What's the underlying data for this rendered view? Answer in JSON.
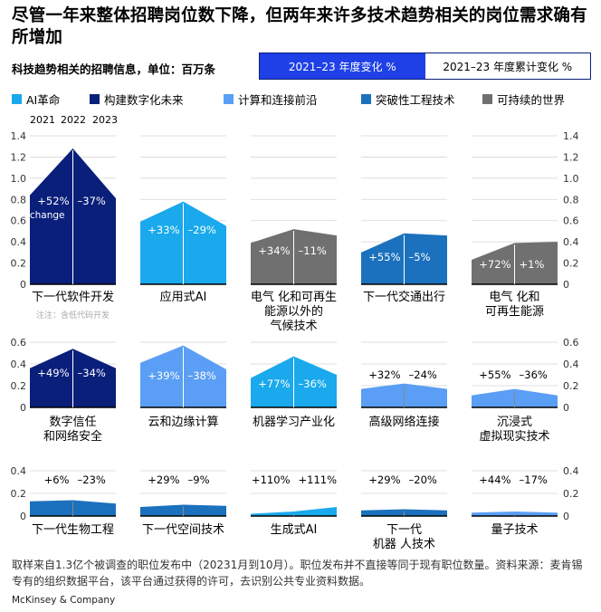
{
  "title": "尽管一年来整体招聘岗位数下降，但两年来许多技术趋势相关的岗位需求确有所增加",
  "subtitle": "科技趋势相关的招聘信息，单位：百万条",
  "tabs": [
    {
      "label": "2021–23 年度变化 %",
      "active": true
    },
    {
      "label": "2021–23 年度累计变化 %",
      "active": false
    }
  ],
  "legend": [
    {
      "label": "AI革命",
      "color": "#19a9ec"
    },
    {
      "label": "构建数字化未来",
      "color": "#0a1f7a"
    },
    {
      "label": "计算和连接前沿",
      "color": "#5a9ef5"
    },
    {
      "label": "突破性工程技术",
      "color": "#1b71bd"
    },
    {
      "label": "可持续的世界",
      "color": "#707070"
    }
  ],
  "years": [
    "2021",
    "2022",
    "2023"
  ],
  "footer": "取样来自1.3亿个被调查的职位发布中（20231月到10月）。职位发布并不直接等同于现有职位数量。资料来源：麦肯锡专有的组织数据平台，该平台通过获得的许可，去识别公共专业资料数据。",
  "brand": "McKinsey & Company",
  "chart_data": {
    "type": "area",
    "x": [
      "2021",
      "2022",
      "2023"
    ],
    "unit": "百万条",
    "rows": [
      {
        "ylim": [
          0,
          1.4
        ],
        "yticks": [
          "0",
          "0.2",
          "0.4",
          "0.6",
          "0.8",
          "1.0",
          "1.2",
          "1.4"
        ]
      },
      {
        "ylim": [
          0,
          0.6
        ],
        "yticks": [
          "0",
          "0.2",
          "0.4",
          "0.6"
        ]
      },
      {
        "ylim": [
          0,
          0.4
        ],
        "yticks": [
          "0",
          "0.2",
          "0.4"
        ]
      }
    ],
    "panels": [
      {
        "name": "下一代软件开发",
        "note": "注注：含低代码开发",
        "category": "构建数字化未来",
        "color": "#0a1f7a",
        "values": [
          0.84,
          1.28,
          0.81
        ],
        "change1": "+52%",
        "change1_sub": "change",
        "change2": "–37%"
      },
      {
        "name": "应用式AI",
        "category": "AI革命",
        "color": "#19a9ec",
        "values": [
          0.59,
          0.78,
          0.55
        ],
        "change1": "+33%",
        "change2": "–29%"
      },
      {
        "name": "电气 化和可再生能源以外的气候技术",
        "lines": [
          "电气 化和可再生",
          "能源以外的",
          "气候技术"
        ],
        "category": "可持续的世界",
        "color": "#707070",
        "values": [
          0.39,
          0.52,
          0.46
        ],
        "change1": "+34%",
        "change2": "–11%"
      },
      {
        "name": "下一代交通出行",
        "category": "突破性工程技术",
        "color": "#1b71bd",
        "values": [
          0.3,
          0.48,
          0.46
        ],
        "change1": "+55%",
        "change2": "–5%"
      },
      {
        "name": "电气 化和可再生能源",
        "lines": [
          "电气 化和",
          "可再生能源"
        ],
        "category": "可持续的世界",
        "color": "#707070",
        "values": [
          0.23,
          0.39,
          0.4
        ],
        "change1": "+72%",
        "change2": "+1%"
      },
      {
        "name": "数字信任和网络安全",
        "lines": [
          "数字信任",
          "和网络安全"
        ],
        "category": "构建数字化未来",
        "color": "#0a1f7a",
        "values": [
          0.36,
          0.54,
          0.36
        ],
        "change1": "+49%",
        "change2": "–34%"
      },
      {
        "name": "云和边缘计算",
        "category": "计算和连接前沿",
        "color": "#5a9ef5",
        "values": [
          0.41,
          0.57,
          0.35
        ],
        "change1": "+39%",
        "change2": "–38%"
      },
      {
        "name": "机器学习产业化",
        "category": "AI革命",
        "color": "#19a9ec",
        "values": [
          0.27,
          0.47,
          0.3
        ],
        "change1": "+77%",
        "change2": "–36%"
      },
      {
        "name": "高级网络连接",
        "category": "计算和连接前沿",
        "color": "#5a9ef5",
        "values": [
          0.17,
          0.22,
          0.17
        ],
        "change1": "+32%",
        "change2": "–24%"
      },
      {
        "name": "沉浸式虚拟现实技术",
        "lines": [
          "沉浸式",
          "虚拟现实技术"
        ],
        "category": "计算和连接前沿",
        "color": "#5a9ef5",
        "values": [
          0.11,
          0.17,
          0.11
        ],
        "change1": "+55%",
        "change2": "–36%"
      },
      {
        "name": "下一代生物工程",
        "category": "突破性工程技术",
        "color": "#1b71bd",
        "values": [
          0.13,
          0.14,
          0.11
        ],
        "change1": "+6%",
        "change2": "–23%"
      },
      {
        "name": "下一代空间技术",
        "category": "突破性工程技术",
        "color": "#1b71bd",
        "values": [
          0.08,
          0.1,
          0.09
        ],
        "change1": "+29%",
        "change2": "–9%"
      },
      {
        "name": "生成式AI",
        "category": "AI革命",
        "color": "#19a9ec",
        "values": [
          0.02,
          0.04,
          0.08
        ],
        "change1": "+110%",
        "change2": "+111%"
      },
      {
        "name": "下一代机器 人技术",
        "lines": [
          "下一代",
          "机器 人技术"
        ],
        "category": "突破性工程技术",
        "color": "#1b71bd",
        "values": [
          0.05,
          0.06,
          0.05
        ],
        "change1": "+29%",
        "change2": "–20%"
      },
      {
        "name": "量子技术",
        "category": "计算和连接前沿",
        "color": "#5a9ef5",
        "values": [
          0.03,
          0.04,
          0.03
        ],
        "change1": "+44%",
        "change2": "–17%"
      }
    ]
  }
}
